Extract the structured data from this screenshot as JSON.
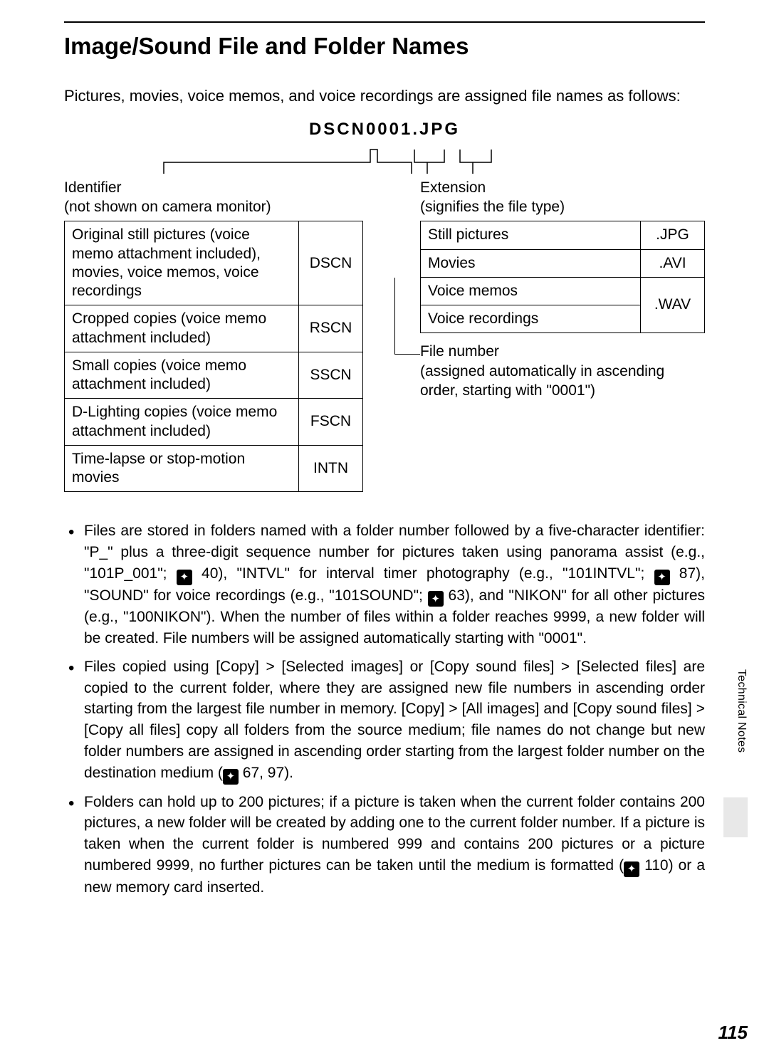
{
  "title": "Image/Sound File and Folder Names",
  "intro": "Pictures, movies, voice memos, and voice recordings are assigned file names as follows:",
  "filename_example": "DSCN0001.JPG",
  "identifier": {
    "heading_line1": "Identifier",
    "heading_line2": "(not shown on camera monitor)",
    "rows": [
      {
        "desc": "Original still pictures (voice memo attachment included), movies, voice memos, voice recordings",
        "code": "DSCN"
      },
      {
        "desc": "Cropped copies (voice memo attachment included)",
        "code": "RSCN"
      },
      {
        "desc": "Small copies (voice memo attachment included)",
        "code": "SSCN"
      },
      {
        "desc": "D-Lighting copies (voice memo attachment included)",
        "code": "FSCN"
      },
      {
        "desc": "Time-lapse or stop-motion movies",
        "code": "INTN"
      }
    ]
  },
  "extension": {
    "heading_line1": "Extension",
    "heading_line2": "(signifies the file type)",
    "rows": [
      {
        "desc": "Still pictures",
        "code": ".JPG",
        "rowspan": 1
      },
      {
        "desc": "Movies",
        "code": ".AVI",
        "rowspan": 1
      },
      {
        "desc": "Voice memos",
        "code": ".WAV",
        "rowspan": 2
      },
      {
        "desc": "Voice recordings",
        "code": "",
        "rowspan": 0
      }
    ]
  },
  "filenum": {
    "line1": "File number",
    "line2": "(assigned automatically in ascending order, starting with \"0001\")"
  },
  "bullets": [
    {
      "parts": [
        {
          "t": "Files are stored in folders named with a folder number followed by a five-character identifier: \"P_\" plus a three-digit sequence number for pictures taken using panorama assist (e.g., \"101P_001\"; "
        },
        {
          "icon": true
        },
        {
          "t": " 40), \"INTVL\" for interval timer photography (e.g., \"101INTVL\"; "
        },
        {
          "icon": true
        },
        {
          "t": " 87), \"SOUND\" for voice recordings (e.g., \"101SOUND\"; "
        },
        {
          "icon": true
        },
        {
          "t": " 63), and \"NIKON\" for all other pictures (e.g., \"100NIKON\"). When the number of files within a folder reaches 9999, a new folder will be created. File numbers will be assigned automatically starting with \"0001\"."
        }
      ]
    },
    {
      "parts": [
        {
          "t": "Files copied using [Copy] > [Selected images] or [Copy sound files] > [Selected files] are copied to the current folder, where they are assigned new file numbers in ascending order starting from the largest file number in memory. [Copy] > [All images] and [Copy sound files] > [Copy all files] copy all folders from the source medium; file names do not change but new folder numbers are assigned in ascending order starting from the largest folder number on the destination medium ("
        },
        {
          "icon": true
        },
        {
          "t": " 67, 97)."
        }
      ]
    },
    {
      "parts": [
        {
          "t": "Folders can hold up to 200 pictures; if a picture is taken when the current folder contains 200 pictures, a new folder will be created by adding one to the current folder number. If a picture is taken when the current folder is numbered 999 and contains 200 pictures or a picture numbered 9999, no further pictures can be taken until the medium is formatted ("
        },
        {
          "icon": true
        },
        {
          "t": " 110) or a new memory card inserted."
        }
      ]
    }
  ],
  "side_tab": "Technical Notes",
  "page_number": "115",
  "colors": {
    "text": "#000000",
    "bg": "#ffffff",
    "sideblock": "#e8e8e8",
    "icon_bg": "#000000",
    "icon_fg": "#ffffff"
  }
}
